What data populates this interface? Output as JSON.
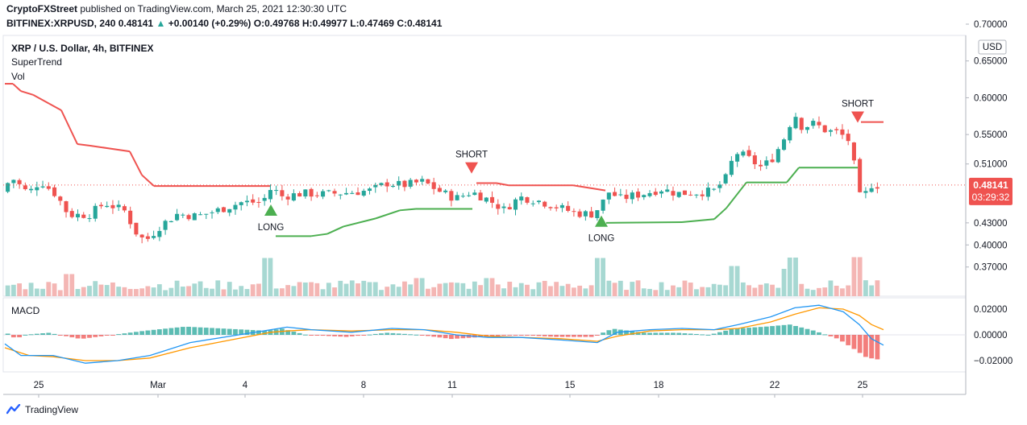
{
  "header": {
    "publisher": "CryptoFXStreet",
    "published_text": "published on TradingView.com, March 25, 2021 12:30:30 UTC",
    "symbol_line": "BITFINEX:XRPUSD, 240",
    "last": "0.48141",
    "change": "+0.00140 (+0.29%)",
    "o_label": "O:",
    "o_val": "0.49768",
    "h_label": "H:",
    "h_val": "0.49977",
    "l_label": "L:",
    "l_val": "0.47469",
    "c_label": "C:",
    "c_val": "0.48141"
  },
  "legend": {
    "title": "XRP / U.S. Dollar, 4h, BITFINEX",
    "supertrend": "SuperTrend",
    "vol": "Vol",
    "macd": "MACD"
  },
  "price_badge": {
    "price": "0.48141",
    "countdown": "03:29:32"
  },
  "currency": "USD",
  "footer": {
    "brand": "TradingView"
  },
  "colors": {
    "up": "#26a69a",
    "down": "#ef5350",
    "st_up": "#4caf50",
    "st_down": "#ef5350",
    "macd": "#2196f3",
    "signal": "#ff9800"
  },
  "chart_data": {
    "type": "candlestick",
    "price_axis": {
      "ticks": [
        "0.70000",
        "0.65000",
        "0.60000",
        "0.55000",
        "0.51000",
        "0.43000",
        "0.40000",
        "0.37000"
      ],
      "range": [
        0.35,
        0.7
      ]
    },
    "macd_axis": {
      "ticks": [
        "0.02000",
        "0.00000",
        "-0.02000"
      ],
      "range": [
        -0.026,
        0.026
      ]
    },
    "x_ticks": [
      {
        "label": "25",
        "x": 48
      },
      {
        "label": "Mar",
        "x": 196
      },
      {
        "label": "4",
        "x": 304
      },
      {
        "label": "8",
        "x": 451
      },
      {
        "label": "11",
        "x": 561
      },
      {
        "label": "15",
        "x": 707
      },
      {
        "label": "18",
        "x": 817
      },
      {
        "label": "22",
        "x": 961
      },
      {
        "label": "25",
        "x": 1070
      }
    ],
    "supertrend_signals": [
      {
        "text": "LONG",
        "dir": "up",
        "x": 336,
        "price": 0.455
      },
      {
        "text": "SHORT",
        "dir": "down",
        "x": 585,
        "price": 0.497
      },
      {
        "text": "LONG",
        "dir": "up",
        "x": 746,
        "price": 0.44
      },
      {
        "text": "SHORT",
        "dir": "down",
        "x": 1064,
        "price": 0.566
      }
    ],
    "close_anchors": [
      [
        0,
        0.472
      ],
      [
        15,
        0.491
      ],
      [
        35,
        0.47
      ],
      [
        50,
        0.487
      ],
      [
        70,
        0.468
      ],
      [
        85,
        0.441
      ],
      [
        110,
        0.441
      ],
      [
        130,
        0.457
      ],
      [
        155,
        0.446
      ],
      [
        168,
        0.418
      ],
      [
        180,
        0.405
      ],
      [
        200,
        0.427
      ],
      [
        220,
        0.442
      ],
      [
        245,
        0.439
      ],
      [
        270,
        0.447
      ],
      [
        300,
        0.458
      ],
      [
        325,
        0.458
      ],
      [
        337,
        0.478
      ],
      [
        350,
        0.466
      ],
      [
        375,
        0.47
      ],
      [
        400,
        0.469
      ],
      [
        430,
        0.471
      ],
      [
        460,
        0.474
      ],
      [
        480,
        0.484
      ],
      [
        500,
        0.481
      ],
      [
        525,
        0.486
      ],
      [
        545,
        0.473
      ],
      [
        565,
        0.463
      ],
      [
        585,
        0.472
      ],
      [
        605,
        0.462
      ],
      [
        625,
        0.448
      ],
      [
        645,
        0.465
      ],
      [
        665,
        0.461
      ],
      [
        690,
        0.452
      ],
      [
        715,
        0.443
      ],
      [
        735,
        0.442
      ],
      [
        745,
        0.453
      ],
      [
        755,
        0.472
      ],
      [
        770,
        0.463
      ],
      [
        785,
        0.467
      ],
      [
        800,
        0.47
      ],
      [
        820,
        0.476
      ],
      [
        840,
        0.47
      ],
      [
        860,
        0.471
      ],
      [
        885,
        0.473
      ],
      [
        900,
        0.49
      ],
      [
        912,
        0.526
      ],
      [
        925,
        0.52
      ],
      [
        945,
        0.505
      ],
      [
        960,
        0.52
      ],
      [
        975,
        0.55
      ],
      [
        985,
        0.58
      ],
      [
        995,
        0.56
      ],
      [
        1010,
        0.565
      ],
      [
        1025,
        0.555
      ],
      [
        1040,
        0.553
      ],
      [
        1055,
        0.54
      ],
      [
        1060,
        0.505
      ],
      [
        1068,
        0.458
      ],
      [
        1080,
        0.482
      ],
      [
        1090,
        0.481
      ]
    ],
    "supertrend": [
      [
        0,
        0.619
      ],
      [
        10,
        0.619
      ],
      [
        20,
        0.609
      ],
      [
        35,
        0.604
      ],
      [
        55,
        0.592
      ],
      [
        70,
        0.583
      ],
      [
        80,
        0.56
      ],
      [
        90,
        0.537
      ],
      [
        105,
        0.535
      ],
      [
        155,
        0.527
      ],
      [
        170,
        0.495
      ],
      [
        185,
        0.48
      ],
      [
        330,
        0.48
      ],
      [
        336,
        0.412
      ],
      [
        380,
        0.412
      ],
      [
        400,
        0.415
      ],
      [
        420,
        0.425
      ],
      [
        460,
        0.436
      ],
      [
        490,
        0.447
      ],
      [
        510,
        0.449
      ],
      [
        580,
        0.449
      ],
      [
        585,
        0.484
      ],
      [
        610,
        0.484
      ],
      [
        625,
        0.481
      ],
      [
        705,
        0.481
      ],
      [
        745,
        0.474
      ],
      [
        746,
        0.43
      ],
      [
        840,
        0.431
      ],
      [
        880,
        0.435
      ],
      [
        895,
        0.45
      ],
      [
        920,
        0.485
      ],
      [
        970,
        0.485
      ],
      [
        985,
        0.505
      ],
      [
        1058,
        0.505
      ],
      [
        1062,
        0.567
      ],
      [
        1090,
        0.567
      ]
    ],
    "supertrend_flips": [
      336,
      585,
      746,
      1062
    ],
    "volume_spikes": [
      [
        87,
        0.55
      ],
      [
        330,
        0.95
      ],
      [
        460,
        0.35
      ],
      [
        523,
        0.45
      ],
      [
        610,
        0.45
      ],
      [
        748,
        0.95
      ],
      [
        910,
        0.75
      ],
      [
        975,
        0.68
      ],
      [
        985,
        0.96
      ],
      [
        1063,
        0.97
      ]
    ],
    "macd_anchors": [
      [
        0,
        -0.007
      ],
      [
        20,
        -0.016
      ],
      [
        60,
        -0.016
      ],
      [
        100,
        -0.022
      ],
      [
        140,
        -0.02
      ],
      [
        180,
        -0.016
      ],
      [
        230,
        -0.006
      ],
      [
        280,
        -0.001
      ],
      [
        330,
        0.004
      ],
      [
        350,
        0.006
      ],
      [
        380,
        0.004
      ],
      [
        430,
        0.002
      ],
      [
        480,
        0.005
      ],
      [
        520,
        0.004
      ],
      [
        560,
        0.0
      ],
      [
        600,
        -0.002
      ],
      [
        640,
        -0.002
      ],
      [
        690,
        -0.004
      ],
      [
        735,
        -0.006
      ],
      [
        760,
        0.002
      ],
      [
        800,
        0.004
      ],
      [
        840,
        0.005
      ],
      [
        880,
        0.004
      ],
      [
        910,
        0.008
      ],
      [
        950,
        0.014
      ],
      [
        980,
        0.021
      ],
      [
        1010,
        0.023
      ],
      [
        1040,
        0.018
      ],
      [
        1060,
        0.008
      ],
      [
        1075,
        -0.003
      ],
      [
        1090,
        -0.008
      ]
    ],
    "signal_anchors": [
      [
        0,
        -0.01
      ],
      [
        30,
        -0.016
      ],
      [
        60,
        -0.017
      ],
      [
        100,
        -0.02
      ],
      [
        140,
        -0.02
      ],
      [
        180,
        -0.018
      ],
      [
        230,
        -0.01
      ],
      [
        280,
        -0.004
      ],
      [
        330,
        0.002
      ],
      [
        350,
        0.003
      ],
      [
        380,
        0.004
      ],
      [
        430,
        0.003
      ],
      [
        480,
        0.004
      ],
      [
        520,
        0.004
      ],
      [
        560,
        0.002
      ],
      [
        600,
        -0.001
      ],
      [
        640,
        -0.002
      ],
      [
        690,
        -0.003
      ],
      [
        735,
        -0.005
      ],
      [
        760,
        -0.001
      ],
      [
        800,
        0.003
      ],
      [
        840,
        0.004
      ],
      [
        880,
        0.004
      ],
      [
        910,
        0.005
      ],
      [
        950,
        0.01
      ],
      [
        980,
        0.016
      ],
      [
        1010,
        0.021
      ],
      [
        1040,
        0.02
      ],
      [
        1060,
        0.015
      ],
      [
        1075,
        0.008
      ],
      [
        1090,
        0.004
      ]
    ]
  }
}
